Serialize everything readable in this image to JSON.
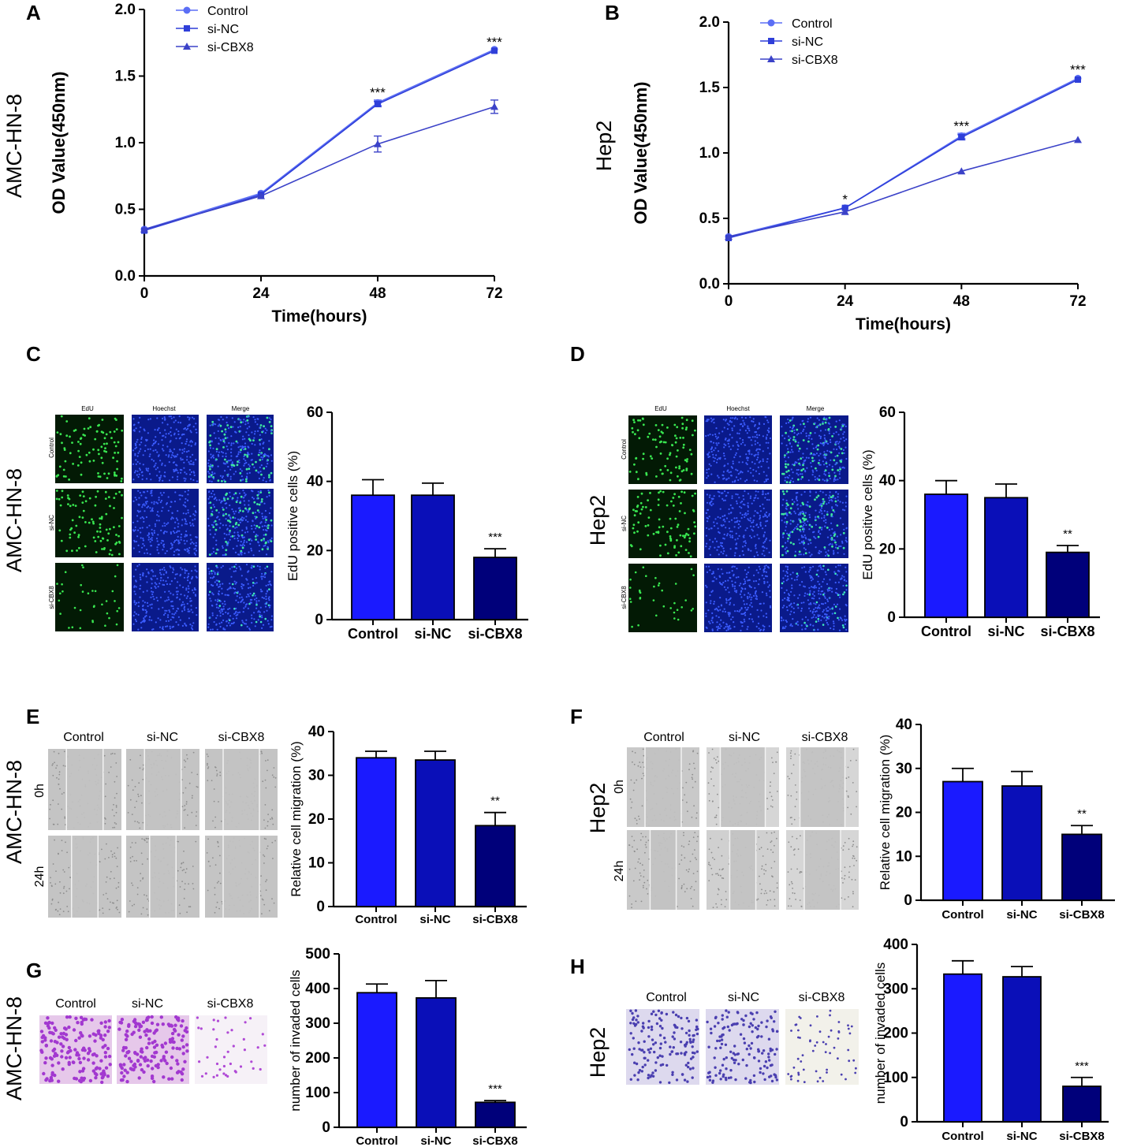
{
  "panels": {
    "A": {
      "letter": "A",
      "row_label": "AMC-HN-8"
    },
    "B": {
      "letter": "B",
      "row_label": "Hep2"
    },
    "C": {
      "letter": "C",
      "row_label": "AMC-HN-8",
      "mic_cols": [
        "EdU",
        "Hoechst",
        "Merge"
      ],
      "mic_rows": [
        "Control",
        "si-NC",
        "si-CBX8"
      ]
    },
    "D": {
      "letter": "D",
      "row_label": "Hep2",
      "mic_cols": [
        "EdU",
        "Hoechst",
        "Merge"
      ],
      "mic_rows": [
        "Control",
        "si-NC",
        "si-CBX8"
      ]
    },
    "E": {
      "letter": "E",
      "row_label": "AMC-HN-8",
      "mic_cols": [
        "Control",
        "si-NC",
        "si-CBX8"
      ],
      "mic_rows": [
        "0h",
        "24h"
      ]
    },
    "F": {
      "letter": "F",
      "row_label": "Hep2",
      "mic_cols": [
        "Control",
        "si-NC",
        "si-CBX8"
      ],
      "mic_rows": [
        "0h",
        "24h"
      ]
    },
    "G": {
      "letter": "G",
      "row_label": "AMC-HN-8",
      "mic_cols": [
        "Control",
        "si-NC",
        "si-CBX8"
      ]
    },
    "H": {
      "letter": "H",
      "row_label": "Hep2",
      "mic_cols": [
        "Control",
        "si-NC",
        "si-CBX8"
      ]
    }
  },
  "colors": {
    "control": "#5b6ef5",
    "sinc_line": "#2f3fd9",
    "cbx8_line": "#3b42c8",
    "bar_control": "#1a1aff",
    "bar_sinc": "#0a0fb8",
    "bar_cbx8": "#00007a"
  },
  "chart_data": [
    {
      "id": "A",
      "type": "line",
      "xlabel": "Time(hours)",
      "ylabel": "OD Value(450nm)",
      "x": [
        0,
        24,
        48,
        72
      ],
      "xticks": [
        "0",
        "24",
        "48",
        "72"
      ],
      "ylim": [
        0,
        2.0
      ],
      "yticks": [
        "0.0",
        "0.5",
        "1.0",
        "1.5",
        "2.0"
      ],
      "legend": "top-left",
      "series": [
        {
          "name": "Control",
          "marker": "circle",
          "values": [
            0.35,
            0.62,
            1.3,
            1.7
          ],
          "err": [
            0.01,
            0.01,
            0.02,
            0.01
          ]
        },
        {
          "name": "si-NC",
          "marker": "square",
          "values": [
            0.34,
            0.61,
            1.29,
            1.69
          ],
          "err": [
            0.01,
            0.01,
            0.02,
            0.01
          ]
        },
        {
          "name": "si-CBX8",
          "marker": "triangle",
          "values": [
            0.35,
            0.6,
            0.99,
            1.27
          ],
          "err": [
            0.01,
            0.01,
            0.06,
            0.05
          ]
        }
      ],
      "annotations": [
        {
          "x": 48,
          "y": 1.39,
          "text": "***"
        },
        {
          "x": 72,
          "y": 1.77,
          "text": "***"
        }
      ]
    },
    {
      "id": "B",
      "type": "line",
      "xlabel": "Time(hours)",
      "ylabel": "OD Value(450nm)",
      "x": [
        0,
        24,
        48,
        72
      ],
      "xticks": [
        "0",
        "24",
        "48",
        "72"
      ],
      "ylim": [
        0,
        2.0
      ],
      "yticks": [
        "0.0",
        "0.5",
        "1.0",
        "1.5",
        "2.0"
      ],
      "legend": "top-left",
      "series": [
        {
          "name": "Control",
          "marker": "circle",
          "values": [
            0.36,
            0.58,
            1.13,
            1.57
          ],
          "err": [
            0.01,
            0.01,
            0.02,
            0.01
          ]
        },
        {
          "name": "si-NC",
          "marker": "square",
          "values": [
            0.35,
            0.58,
            1.12,
            1.56
          ],
          "err": [
            0.01,
            0.01,
            0.02,
            0.01
          ]
        },
        {
          "name": "si-CBX8",
          "marker": "triangle",
          "values": [
            0.36,
            0.55,
            0.86,
            1.1
          ],
          "err": [
            0.01,
            0.01,
            0.01,
            0.01
          ]
        }
      ],
      "annotations": [
        {
          "x": 24,
          "y": 0.66,
          "text": "*"
        },
        {
          "x": 48,
          "y": 1.22,
          "text": "***"
        },
        {
          "x": 72,
          "y": 1.65,
          "text": "***"
        }
      ]
    },
    {
      "id": "C",
      "type": "bar",
      "ylabel": "EdU positive cells (%)",
      "categories": [
        "Control",
        "si-NC",
        "si-CBX8"
      ],
      "values": [
        36,
        36,
        18
      ],
      "err": [
        4.5,
        3.5,
        2.5
      ],
      "ylim": [
        0,
        60
      ],
      "yticks": [
        "0",
        "20",
        "40",
        "60"
      ],
      "annotations": [
        {
          "index": 2,
          "text": "***"
        }
      ]
    },
    {
      "id": "D",
      "type": "bar",
      "ylabel": "EdU positive cells (%)",
      "categories": [
        "Control",
        "si-NC",
        "si-CBX8"
      ],
      "values": [
        36,
        35,
        19
      ],
      "err": [
        4,
        4,
        2
      ],
      "ylim": [
        0,
        60
      ],
      "yticks": [
        "0",
        "20",
        "40",
        "60"
      ],
      "annotations": [
        {
          "index": 2,
          "text": "**"
        }
      ]
    },
    {
      "id": "E",
      "type": "bar",
      "ylabel": "Relative cell migration (%)",
      "categories": [
        "Control",
        "si-NC",
        "si-CBX8"
      ],
      "values": [
        34,
        33.5,
        18.5
      ],
      "err": [
        1.5,
        2,
        3
      ],
      "ylim": [
        0,
        40
      ],
      "yticks": [
        "0",
        "10",
        "20",
        "30",
        "40"
      ],
      "annotations": [
        {
          "index": 2,
          "text": "**"
        }
      ]
    },
    {
      "id": "F",
      "type": "bar",
      "ylabel": "Relative cell migration (%)",
      "categories": [
        "Control",
        "si-NC",
        "si-CBX8"
      ],
      "values": [
        27,
        26,
        15
      ],
      "err": [
        3,
        3.3,
        2
      ],
      "ylim": [
        0,
        40
      ],
      "yticks": [
        "0",
        "10",
        "20",
        "30",
        "40"
      ],
      "annotations": [
        {
          "index": 2,
          "text": "**"
        }
      ]
    },
    {
      "id": "G",
      "type": "bar",
      "ylabel": "number of invaded cells",
      "categories": [
        "Control",
        "si-NC",
        "si-CBX8"
      ],
      "values": [
        388,
        373,
        72
      ],
      "err": [
        25,
        50,
        5
      ],
      "ylim": [
        0,
        500
      ],
      "yticks": [
        "0",
        "100",
        "200",
        "300",
        "400",
        "500"
      ],
      "annotations": [
        {
          "index": 2,
          "text": "***"
        }
      ]
    },
    {
      "id": "H",
      "type": "bar",
      "ylabel": "number of invaded cells",
      "categories": [
        "Control",
        "si-NC",
        "si-CBX8"
      ],
      "values": [
        333,
        327,
        80
      ],
      "err": [
        30,
        23,
        20
      ],
      "ylim": [
        0,
        400
      ],
      "yticks": [
        "0",
        "100",
        "200",
        "300",
        "400"
      ],
      "annotations": [
        {
          "index": 2,
          "text": "***"
        }
      ]
    }
  ]
}
